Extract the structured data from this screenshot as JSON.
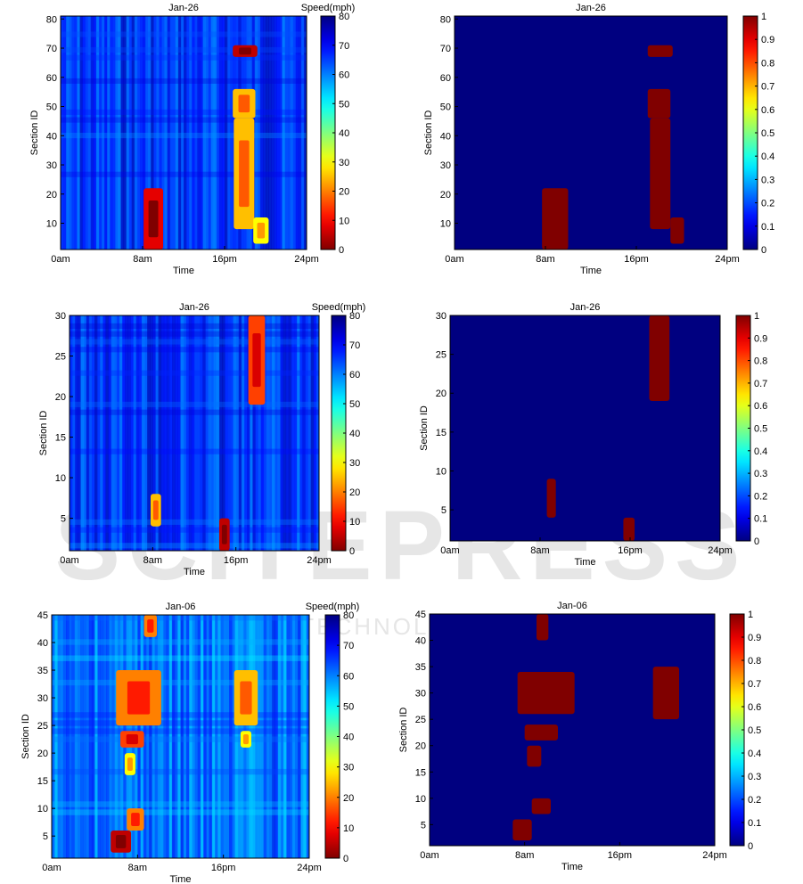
{
  "watermark": {
    "text": "SCITEPRESS",
    "subtext": "SCIENCE AND TECHNOLOGY PUBLICATIONS"
  },
  "chart_data": [
    {
      "type": "heatmap",
      "title": "Jan-26",
      "xlabel": "Time",
      "ylabel": "Section ID",
      "colorbar_label": "Speed(mph)",
      "colormap": "jet_reversed",
      "xticks": [
        "0am",
        "8am",
        "16pm",
        "24pm"
      ],
      "yticks": [
        10,
        20,
        30,
        40,
        50,
        60,
        70,
        80
      ],
      "cbar_ticks": [
        0,
        10,
        20,
        30,
        40,
        50,
        60,
        70,
        80
      ],
      "xlim": [
        0,
        24
      ],
      "ylim": [
        1,
        81
      ],
      "clim": [
        0,
        80
      ],
      "background_value": 65,
      "congestion_regions": [
        {
          "t": [
            8.1,
            10.0
          ],
          "s": [
            1,
            22
          ],
          "value": 8
        },
        {
          "t": [
            16.8,
            19.2
          ],
          "s": [
            67,
            71
          ],
          "value": 5
        },
        {
          "t": [
            16.8,
            19.0
          ],
          "s": [
            46,
            56
          ],
          "value": 25
        },
        {
          "t": [
            16.9,
            18.9
          ],
          "s": [
            8,
            46
          ],
          "value": 25
        },
        {
          "t": [
            18.8,
            20.3
          ],
          "s": [
            3,
            12
          ],
          "value": 30
        }
      ]
    },
    {
      "type": "heatmap",
      "title": "Jan-26",
      "xlabel": "Time",
      "ylabel": "Section ID",
      "colormap": "jet",
      "xticks": [
        "0am",
        "8am",
        "16pm",
        "24pm"
      ],
      "yticks": [
        10,
        20,
        30,
        40,
        50,
        60,
        70,
        80
      ],
      "cbar_ticks": [
        "0",
        "0.1",
        "0.2",
        "0.3",
        "0.4",
        "0.5",
        "0.6",
        "0.7",
        "0.8",
        "0.9",
        "1"
      ],
      "xlim": [
        0,
        24
      ],
      "ylim": [
        1,
        81
      ],
      "clim": [
        0,
        1
      ],
      "background_value": 0,
      "congestion_regions": [
        {
          "t": [
            7.7,
            10.0
          ],
          "s": [
            1,
            22
          ],
          "value": 1
        },
        {
          "t": [
            17.0,
            19.2
          ],
          "s": [
            67,
            71
          ],
          "value": 1
        },
        {
          "t": [
            17.0,
            19.0
          ],
          "s": [
            46,
            56
          ],
          "value": 1
        },
        {
          "t": [
            17.2,
            19.0
          ],
          "s": [
            8,
            46
          ],
          "value": 1
        },
        {
          "t": [
            19.0,
            20.2
          ],
          "s": [
            3,
            12
          ],
          "value": 1
        }
      ]
    },
    {
      "type": "heatmap",
      "title": "Jan-26",
      "xlabel": "Time",
      "ylabel": "Section ID",
      "colorbar_label": "Speed(mph)",
      "colormap": "jet_reversed",
      "xticks": [
        "0am",
        "8am",
        "16pm",
        "24pm"
      ],
      "yticks": [
        5,
        10,
        15,
        20,
        25,
        30
      ],
      "cbar_ticks": [
        0,
        10,
        20,
        30,
        40,
        50,
        60,
        70,
        80
      ],
      "xlim": [
        0,
        24
      ],
      "ylim": [
        1,
        30
      ],
      "clim": [
        0,
        80
      ],
      "background_value": 65,
      "congestion_regions": [
        {
          "t": [
            17.2,
            18.8
          ],
          "s": [
            19,
            30
          ],
          "value": 15
        },
        {
          "t": [
            7.8,
            8.8
          ],
          "s": [
            4,
            8
          ],
          "value": 25
        },
        {
          "t": [
            14.4,
            15.4
          ],
          "s": [
            1,
            5
          ],
          "value": 5
        }
      ]
    },
    {
      "type": "heatmap",
      "title": "Jan-26",
      "xlabel": "Time",
      "ylabel": "Section ID",
      "colormap": "jet",
      "xticks": [
        "0am",
        "8am",
        "16pm",
        "24pm"
      ],
      "yticks": [
        5,
        10,
        15,
        20,
        25,
        30
      ],
      "cbar_ticks": [
        "0",
        "0.1",
        "0.2",
        "0.3",
        "0.4",
        "0.5",
        "0.6",
        "0.7",
        "0.8",
        "0.9",
        "1"
      ],
      "xlim": [
        0,
        24
      ],
      "ylim": [
        1,
        30
      ],
      "clim": [
        0,
        1
      ],
      "background_value": 0,
      "congestion_regions": [
        {
          "t": [
            17.7,
            19.5
          ],
          "s": [
            19,
            30
          ],
          "value": 1
        },
        {
          "t": [
            8.6,
            9.4
          ],
          "s": [
            4,
            9
          ],
          "value": 1
        },
        {
          "t": [
            15.4,
            16.4
          ],
          "s": [
            1,
            4
          ],
          "value": 1
        }
      ]
    },
    {
      "type": "heatmap",
      "title": "Jan-06",
      "xlabel": "Time",
      "ylabel": "Section ID",
      "colorbar_label": "Speed(mph)",
      "colormap": "jet_reversed",
      "xticks": [
        "0am",
        "8am",
        "16pm",
        "24pm"
      ],
      "yticks": [
        5,
        10,
        15,
        20,
        25,
        30,
        35,
        40,
        45
      ],
      "cbar_ticks": [
        0,
        10,
        20,
        30,
        40,
        50,
        60,
        70,
        80
      ],
      "xlim": [
        0,
        24
      ],
      "ylim": [
        1,
        45
      ],
      "clim": [
        0,
        80
      ],
      "background_value": 60,
      "congestion_regions": [
        {
          "t": [
            8.6,
            9.8
          ],
          "s": [
            41,
            45
          ],
          "value": 20
        },
        {
          "t": [
            6.0,
            10.2
          ],
          "s": [
            25,
            35
          ],
          "value": 20
        },
        {
          "t": [
            17.0,
            19.2
          ],
          "s": [
            25,
            35
          ],
          "value": 25
        },
        {
          "t": [
            6.4,
            8.6
          ],
          "s": [
            21,
            24
          ],
          "value": 15
        },
        {
          "t": [
            17.6,
            18.6
          ],
          "s": [
            21,
            24
          ],
          "value": 30
        },
        {
          "t": [
            6.8,
            7.8
          ],
          "s": [
            16,
            20
          ],
          "value": 30
        },
        {
          "t": [
            7.0,
            8.6
          ],
          "s": [
            6,
            10
          ],
          "value": 20
        },
        {
          "t": [
            5.5,
            7.4
          ],
          "s": [
            2,
            6
          ],
          "value": 5
        }
      ]
    },
    {
      "type": "heatmap",
      "title": "Jan-06",
      "xlabel": "Time",
      "ylabel": "Section ID",
      "colormap": "jet",
      "xticks": [
        "0am",
        "8am",
        "16pm",
        "24pm"
      ],
      "yticks": [
        5,
        10,
        15,
        20,
        25,
        30,
        35,
        40,
        45
      ],
      "cbar_ticks": [
        "0",
        "0.1",
        "0.2",
        "0.3",
        "0.4",
        "0.5",
        "0.6",
        "0.7",
        "0.8",
        "0.9",
        "1"
      ],
      "xlim": [
        0,
        24
      ],
      "ylim": [
        1,
        45
      ],
      "clim": [
        0,
        1
      ],
      "background_value": 0,
      "congestion_regions": [
        {
          "t": [
            9.0,
            10.0
          ],
          "s": [
            40,
            45
          ],
          "value": 1
        },
        {
          "t": [
            7.4,
            12.2
          ],
          "s": [
            26,
            34
          ],
          "value": 1
        },
        {
          "t": [
            18.8,
            21.0
          ],
          "s": [
            25,
            35
          ],
          "value": 1
        },
        {
          "t": [
            8.0,
            10.8
          ],
          "s": [
            21,
            24
          ],
          "value": 1
        },
        {
          "t": [
            8.2,
            9.4
          ],
          "s": [
            16,
            20
          ],
          "value": 1
        },
        {
          "t": [
            8.6,
            10.2
          ],
          "s": [
            7,
            10
          ],
          "value": 1
        },
        {
          "t": [
            7.0,
            8.6
          ],
          "s": [
            2,
            6
          ],
          "value": 1
        }
      ]
    }
  ]
}
